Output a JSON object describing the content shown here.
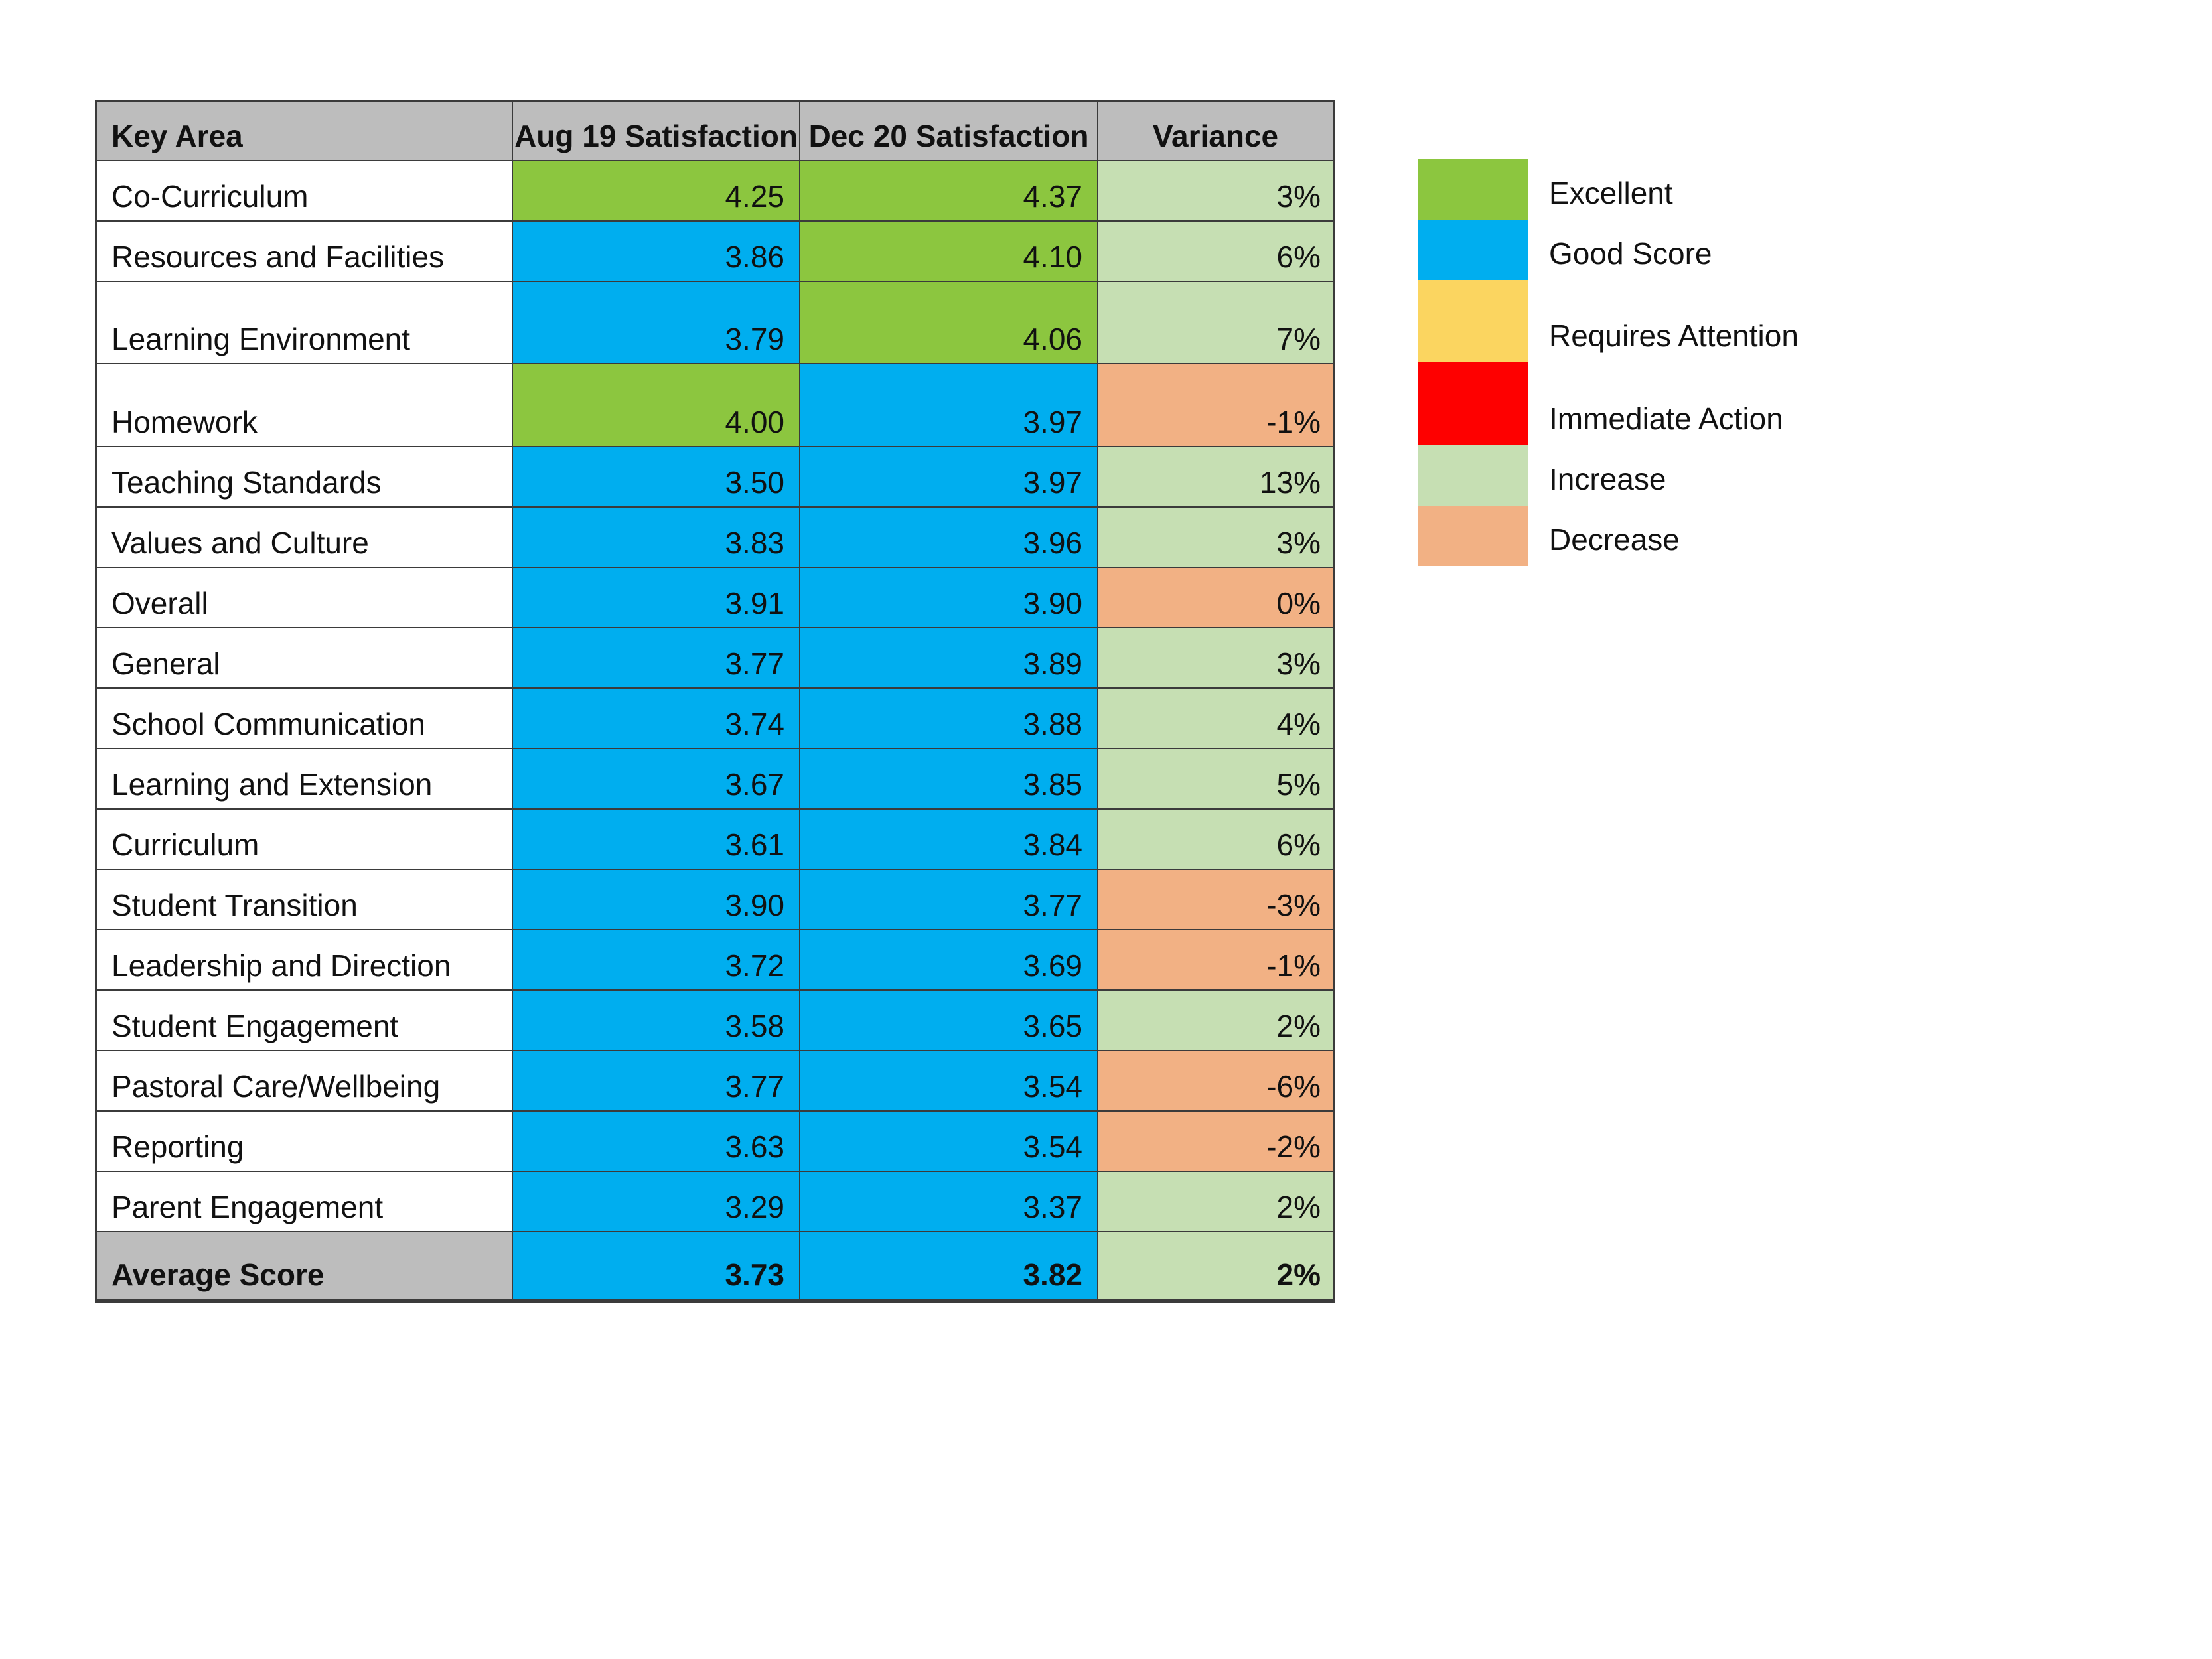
{
  "colors": {
    "excellent": "#8CC63F",
    "good": "#00AEEF",
    "attention": "#FBD560",
    "immediate": "#FE0000",
    "increase": "#C6DFB3",
    "decrease": "#F2B184",
    "header_bg": "#BDBDBD",
    "border": "#3B3B3B"
  },
  "table": {
    "columns": [
      "Key Area",
      "Aug 19 Satisfaction",
      "Dec 20 Satisfaction",
      "Variance"
    ],
    "rows": [
      {
        "area": "Co-Curriculum",
        "aug": "4.25",
        "dec": "4.37",
        "variance": "3%",
        "aug_level": "excellent",
        "dec_level": "excellent",
        "trend": "increase"
      },
      {
        "area": "Resources and Facilities",
        "aug": "3.86",
        "dec": "4.10",
        "variance": "6%",
        "aug_level": "good",
        "dec_level": "excellent",
        "trend": "increase"
      },
      {
        "area": "Learning Environment",
        "aug": "3.79",
        "dec": "4.06",
        "variance": "7%",
        "aug_level": "good",
        "dec_level": "excellent",
        "trend": "increase"
      },
      {
        "area": "Homework",
        "aug": "4.00",
        "dec": "3.97",
        "variance": "-1%",
        "aug_level": "excellent",
        "dec_level": "good",
        "trend": "decrease"
      },
      {
        "area": "Teaching Standards",
        "aug": "3.50",
        "dec": "3.97",
        "variance": "13%",
        "aug_level": "good",
        "dec_level": "good",
        "trend": "increase"
      },
      {
        "area": "Values and Culture",
        "aug": "3.83",
        "dec": "3.96",
        "variance": "3%",
        "aug_level": "good",
        "dec_level": "good",
        "trend": "increase"
      },
      {
        "area": "Overall",
        "aug": "3.91",
        "dec": "3.90",
        "variance": "0%",
        "aug_level": "good",
        "dec_level": "good",
        "trend": "decrease"
      },
      {
        "area": "General",
        "aug": "3.77",
        "dec": "3.89",
        "variance": "3%",
        "aug_level": "good",
        "dec_level": "good",
        "trend": "increase"
      },
      {
        "area": "School Communication",
        "aug": "3.74",
        "dec": "3.88",
        "variance": "4%",
        "aug_level": "good",
        "dec_level": "good",
        "trend": "increase"
      },
      {
        "area": "Learning and Extension",
        "aug": "3.67",
        "dec": "3.85",
        "variance": "5%",
        "aug_level": "good",
        "dec_level": "good",
        "trend": "increase"
      },
      {
        "area": "Curriculum",
        "aug": "3.61",
        "dec": "3.84",
        "variance": "6%",
        "aug_level": "good",
        "dec_level": "good",
        "trend": "increase"
      },
      {
        "area": "Student Transition",
        "aug": "3.90",
        "dec": "3.77",
        "variance": "-3%",
        "aug_level": "good",
        "dec_level": "good",
        "trend": "decrease"
      },
      {
        "area": "Leadership and Direction",
        "aug": "3.72",
        "dec": "3.69",
        "variance": "-1%",
        "aug_level": "good",
        "dec_level": "good",
        "trend": "decrease"
      },
      {
        "area": "Student Engagement",
        "aug": "3.58",
        "dec": "3.65",
        "variance": "2%",
        "aug_level": "good",
        "dec_level": "good",
        "trend": "increase"
      },
      {
        "area": "Pastoral Care/Wellbeing",
        "aug": "3.77",
        "dec": "3.54",
        "variance": "-6%",
        "aug_level": "good",
        "dec_level": "good",
        "trend": "decrease"
      },
      {
        "area": "Reporting",
        "aug": "3.63",
        "dec": "3.54",
        "variance": "-2%",
        "aug_level": "good",
        "dec_level": "good",
        "trend": "decrease"
      },
      {
        "area": "Parent Engagement",
        "aug": "3.29",
        "dec": "3.37",
        "variance": "2%",
        "aug_level": "good",
        "dec_level": "good",
        "trend": "increase"
      },
      {
        "area": "Average Score",
        "aug": "3.73",
        "dec": "3.82",
        "variance": "2%",
        "aug_level": "good",
        "dec_level": "good",
        "trend": "increase"
      }
    ]
  },
  "legend": {
    "items": [
      {
        "label": "Excellent",
        "level": "excellent"
      },
      {
        "label": "Good Score",
        "level": "good"
      },
      {
        "label": "Requires Attention",
        "level": "attention"
      },
      {
        "label": "Immediate Action",
        "level": "immediate"
      },
      {
        "label": "Increase",
        "level": "increase"
      },
      {
        "label": "Decrease",
        "level": "decrease"
      }
    ]
  },
  "chart_data": {
    "type": "table",
    "title": "",
    "columns": [
      "Key Area",
      "Aug 19 Satisfaction",
      "Dec 20 Satisfaction",
      "Variance"
    ],
    "rows": [
      [
        "Co-Curriculum",
        4.25,
        4.37,
        "3%"
      ],
      [
        "Resources and Facilities",
        3.86,
        4.1,
        "6%"
      ],
      [
        "Learning Environment",
        3.79,
        4.06,
        "7%"
      ],
      [
        "Homework",
        4.0,
        3.97,
        "-1%"
      ],
      [
        "Teaching Standards",
        3.5,
        3.97,
        "13%"
      ],
      [
        "Values and Culture",
        3.83,
        3.96,
        "3%"
      ],
      [
        "Overall",
        3.91,
        3.9,
        "0%"
      ],
      [
        "General",
        3.77,
        3.89,
        "3%"
      ],
      [
        "School Communication",
        3.74,
        3.88,
        "4%"
      ],
      [
        "Learning and Extension",
        3.67,
        3.85,
        "5%"
      ],
      [
        "Curriculum",
        3.61,
        3.84,
        "6%"
      ],
      [
        "Student Transition",
        3.9,
        3.77,
        "-3%"
      ],
      [
        "Leadership and Direction",
        3.72,
        3.69,
        "-1%"
      ],
      [
        "Student Engagement",
        3.58,
        3.65,
        "2%"
      ],
      [
        "Pastoral Care/Wellbeing",
        3.77,
        3.54,
        "-6%"
      ],
      [
        "Reporting",
        3.63,
        3.54,
        "-2%"
      ],
      [
        "Parent Engagement",
        3.29,
        3.37,
        "2%"
      ],
      [
        "Average Score",
        3.73,
        3.82,
        "2%"
      ]
    ],
    "legend_entries": [
      "Excellent",
      "Good Score",
      "Requires Attention",
      "Immediate Action",
      "Increase",
      "Decrease"
    ]
  }
}
